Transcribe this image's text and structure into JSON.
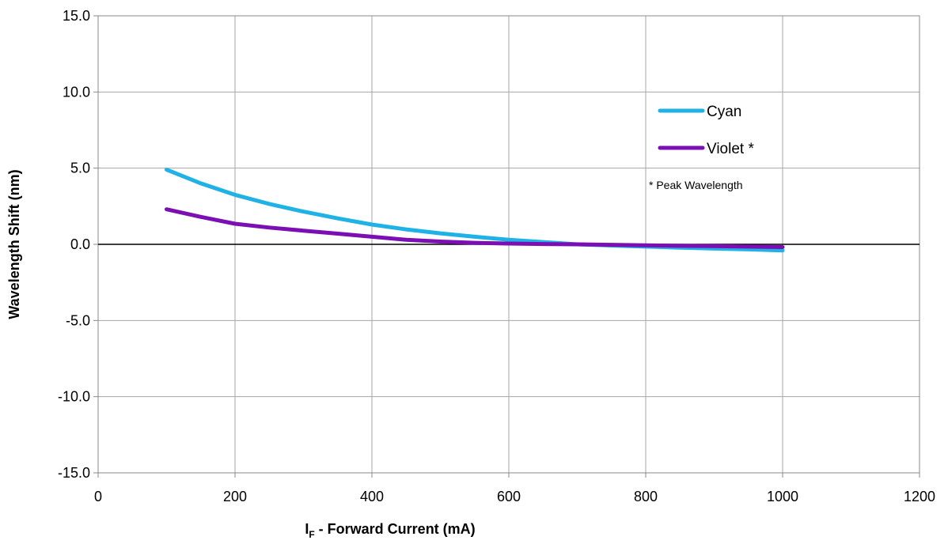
{
  "chart_data": {
    "type": "line",
    "xlabel_main": "I",
    "xlabel_sub": "F",
    "xlabel_rest": " - Forward Current (mA)",
    "ylabel": "Wavelength Shift (nm)",
    "xlim": [
      0,
      1200
    ],
    "ylim": [
      -15,
      15
    ],
    "x_ticks": [
      0,
      200,
      400,
      600,
      800,
      1000,
      1200
    ],
    "y_ticks": [
      -15,
      -10,
      -5,
      0,
      5,
      10,
      15
    ],
    "x_tick_labels": [
      "0",
      "200",
      "400",
      "600",
      "800",
      "1000",
      "1200"
    ],
    "y_tick_labels": [
      "-15.0",
      "-10.0",
      "-5.0",
      "0.0",
      "5.0",
      "10.0",
      "15.0"
    ],
    "grid": true,
    "legend_position": "right",
    "note": "* Peak Wavelength",
    "series": [
      {
        "name": "Cyan",
        "color": "#1fb2e6",
        "x": [
          100,
          150,
          200,
          250,
          300,
          350,
          400,
          450,
          500,
          550,
          600,
          650,
          700,
          750,
          800,
          850,
          900,
          950,
          1000
        ],
        "y": [
          4.9,
          4.0,
          3.25,
          2.65,
          2.15,
          1.7,
          1.3,
          0.98,
          0.72,
          0.5,
          0.3,
          0.15,
          0.0,
          -0.08,
          -0.15,
          -0.22,
          -0.28,
          -0.33,
          -0.4
        ]
      },
      {
        "name": "Violet *",
        "color": "#7b0fb3",
        "x": [
          100,
          150,
          200,
          250,
          300,
          350,
          400,
          450,
          500,
          550,
          600,
          650,
          700,
          750,
          800,
          850,
          900,
          950,
          1000
        ],
        "y": [
          2.3,
          1.8,
          1.35,
          1.1,
          0.9,
          0.7,
          0.5,
          0.3,
          0.18,
          0.1,
          0.05,
          0.02,
          0.0,
          -0.03,
          -0.06,
          -0.1,
          -0.12,
          -0.15,
          -0.18
        ]
      }
    ]
  }
}
